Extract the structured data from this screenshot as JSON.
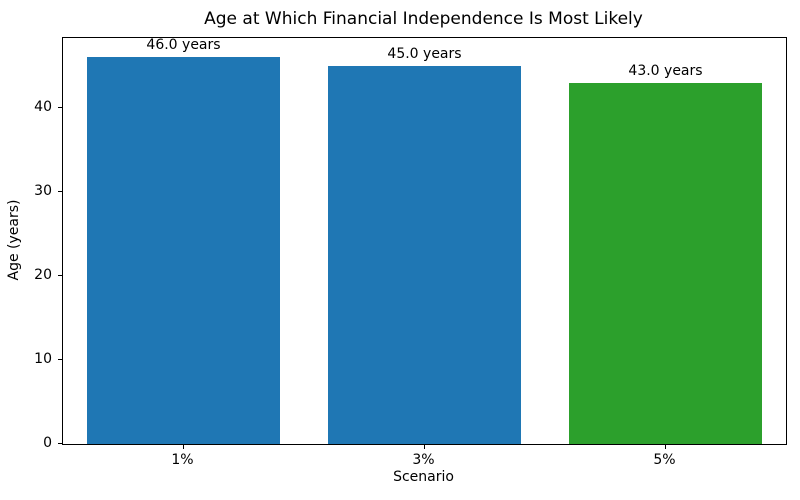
{
  "chart_data": {
    "type": "bar",
    "title": "Age at Which Financial Independence Is Most Likely",
    "xlabel": "Scenario",
    "ylabel": "Age (years)",
    "categories": [
      "1%",
      "3%",
      "5%"
    ],
    "values": [
      46.0,
      45.0,
      43.0
    ],
    "bar_labels": [
      "46.0 years",
      "45.0 years",
      "43.0 years"
    ],
    "bar_colors": [
      "#1f77b4",
      "#1f77b4",
      "#2ca02c"
    ],
    "ylim": [
      0,
      48.3
    ],
    "yticks": [
      0,
      10,
      20,
      30,
      40
    ],
    "bar_width_fraction": 0.8,
    "grid": false,
    "legend": "none",
    "spines": "all",
    "background_color": "#ffffff",
    "text_color": "#000000"
  }
}
